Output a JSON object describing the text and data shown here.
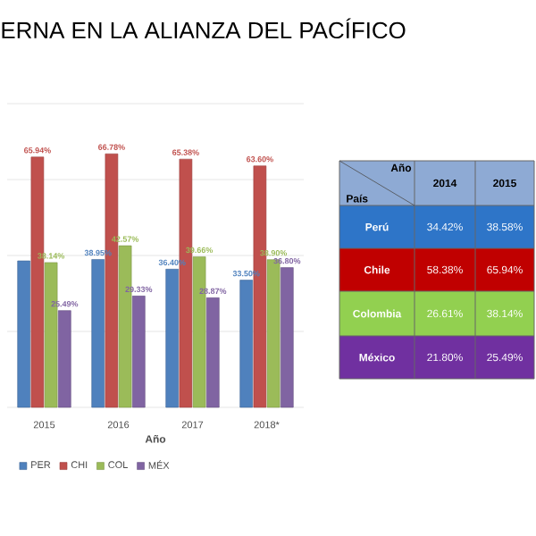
{
  "chart_data": [
    {
      "type": "bar",
      "title": "ERNA EN LA ALIANZA DEL PACÍFICO",
      "xlabel": "Año",
      "categories": [
        "2015",
        "2016",
        "2017",
        "2018*"
      ],
      "grid": "y",
      "legend": "bottom",
      "series": [
        {
          "name": "PER",
          "color": "#4f81bd",
          "values": [
            38.58,
            38.95,
            36.4,
            33.5
          ],
          "value_labels": [
            null,
            "38.95%",
            "36.40%",
            "33.50%"
          ]
        },
        {
          "name": "CHI",
          "color": "#c0504d",
          "values": [
            65.94,
            66.78,
            65.38,
            63.6
          ],
          "value_labels": [
            "65.94%",
            "66.78%",
            "65.38%",
            "63.60%"
          ]
        },
        {
          "name": "COL",
          "color": "#9bbb59",
          "values": [
            38.14,
            42.57,
            39.66,
            38.9
          ],
          "value_labels": [
            "38.14%",
            "42.57%",
            "39.66%",
            "38.90%"
          ]
        },
        {
          "name": "MÉX",
          "color": "#8064a2",
          "values": [
            25.49,
            29.33,
            28.87,
            36.8
          ],
          "value_labels": [
            "25.49%",
            "29.33%",
            "28.87%",
            "36.80%"
          ]
        }
      ]
    },
    {
      "type": "other",
      "xlabel": "Año",
      "ylabel": "País",
      "categories": [
        "2014",
        "2015"
      ],
      "y_categories": [
        "Perú",
        "Chile",
        "Colombia",
        "México"
      ],
      "colors": [
        "#8eaad4",
        "#2e75c8",
        "#c00000",
        "#92d050",
        "#7030a0"
      ],
      "cell_labels": [
        [
          "34.42%",
          "38.58%"
        ],
        [
          "58.38%",
          "65.94%"
        ],
        [
          "26.61%",
          "38.14%"
        ],
        [
          "21.80%",
          "25.49%"
        ]
      ]
    }
  ]
}
